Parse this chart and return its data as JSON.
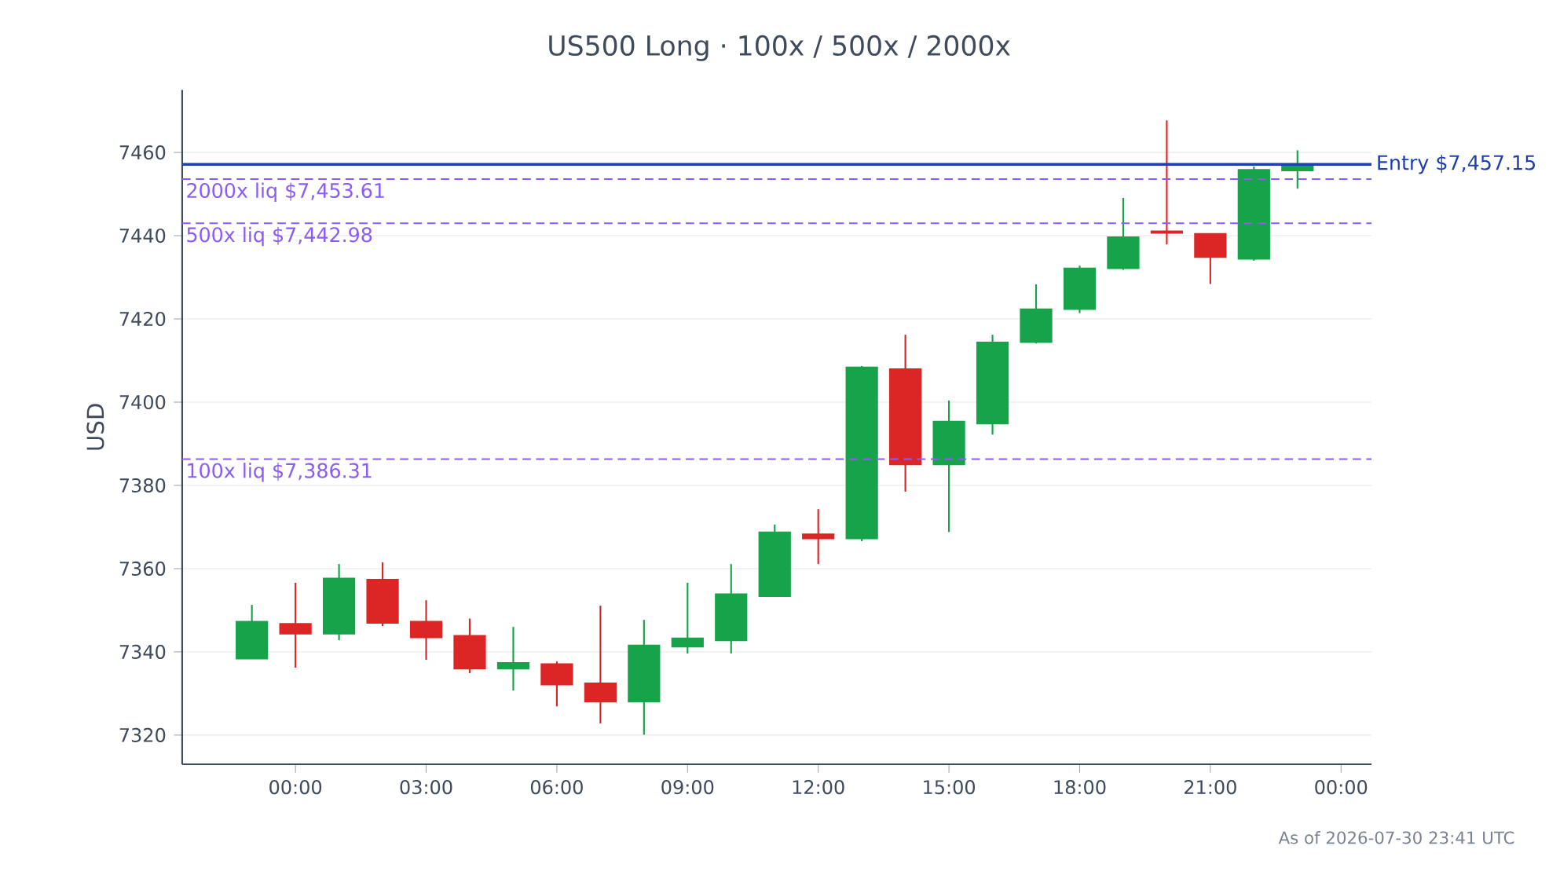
{
  "chart_data": {
    "type": "candlestick",
    "title": "US500 Long · 100x / 500x / 2000x",
    "ylabel": "USD",
    "x": [
      -1,
      0,
      1,
      2,
      3,
      4,
      5,
      6,
      7,
      8,
      9,
      10,
      11,
      12,
      13,
      14,
      15,
      16,
      17,
      18,
      19,
      20,
      21,
      22,
      23
    ],
    "ohlc": [
      [
        7338.4,
        7351.3,
        7338.4,
        7347.2
      ],
      [
        7346.7,
        7356.6,
        7336.2,
        7344.4
      ],
      [
        7344.4,
        7361.1,
        7342.8,
        7357.6
      ],
      [
        7357.3,
        7361.5,
        7346.2,
        7347.0
      ],
      [
        7347.2,
        7352.4,
        7338.1,
        7343.5
      ],
      [
        7343.8,
        7348.0,
        7334.9,
        7336.0
      ],
      [
        7336.0,
        7346.0,
        7330.7,
        7337.3
      ],
      [
        7337.0,
        7337.7,
        7326.9,
        7332.2
      ],
      [
        7332.4,
        7351.1,
        7322.8,
        7328.1
      ],
      [
        7328.1,
        7347.7,
        7320.1,
        7341.5
      ],
      [
        7341.3,
        7356.6,
        7339.6,
        7343.2
      ],
      [
        7342.8,
        7361.1,
        7339.6,
        7353.8
      ],
      [
        7353.4,
        7370.6,
        7353.4,
        7368.7
      ],
      [
        7368.2,
        7374.3,
        7361.1,
        7367.3
      ],
      [
        7367.3,
        7408.7,
        7366.6,
        7408.3
      ],
      [
        7407.9,
        7416.2,
        7378.5,
        7385.1
      ],
      [
        7385.1,
        7400.4,
        7368.8,
        7395.3
      ],
      [
        7394.9,
        7416.2,
        7392.2,
        7414.3
      ],
      [
        7414.5,
        7428.3,
        7414.1,
        7422.3
      ],
      [
        7422.4,
        7432.8,
        7421.4,
        7432.1
      ],
      [
        7432.2,
        7449.1,
        7431.8,
        7439.6
      ],
      [
        7441.0,
        7467.7,
        7437.9,
        7440.7
      ],
      [
        7440.4,
        7440.4,
        7428.4,
        7434.9
      ],
      [
        7434.5,
        7456.6,
        7434.0,
        7455.8
      ],
      [
        7455.7,
        7460.5,
        7451.3,
        7456.9
      ]
    ],
    "colors": [
      "#16a34a",
      "#dc2626",
      "#16a34a",
      "#dc2626",
      "#dc2626",
      "#dc2626",
      "#16a34a",
      "#dc2626",
      "#dc2626",
      "#16a34a",
      "#16a34a",
      "#16a34a",
      "#16a34a",
      "#dc2626",
      "#16a34a",
      "#dc2626",
      "#16a34a",
      "#16a34a",
      "#16a34a",
      "#16a34a",
      "#16a34a",
      "#dc2626",
      "#dc2626",
      "#16a34a",
      "#16a34a"
    ],
    "xlim": [
      -2.6,
      24.7
    ],
    "xticks": [
      {
        "value": 0,
        "label": "00:00"
      },
      {
        "value": 3,
        "label": "03:00"
      },
      {
        "value": 6,
        "label": "06:00"
      },
      {
        "value": 9,
        "label": "09:00"
      },
      {
        "value": 12,
        "label": "12:00"
      },
      {
        "value": 15,
        "label": "15:00"
      },
      {
        "value": 18,
        "label": "18:00"
      },
      {
        "value": 21,
        "label": "21:00"
      },
      {
        "value": 24,
        "label": "00:00"
      }
    ],
    "ylim": [
      7313,
      7475
    ],
    "yticks": [
      7320,
      7340,
      7360,
      7380,
      7400,
      7420,
      7440,
      7460
    ],
    "grid": "y",
    "ref_lines": [
      {
        "axis": "y",
        "value": 7457.15,
        "label": "Entry $7,457.15",
        "color": "#1e40af",
        "line_style": "solid"
      },
      {
        "axis": "y",
        "value": 7453.61,
        "label": "2000x liq $7,453.61",
        "color": "#8b5cf6",
        "line_style": "dashed"
      },
      {
        "axis": "y",
        "value": 7442.98,
        "label": "500x liq $7,442.98",
        "color": "#8b5cf6",
        "line_style": "dashed"
      },
      {
        "axis": "y",
        "value": 7386.31,
        "label": "100x liq $7,386.31",
        "color": "#8b5cf6",
        "line_style": "dashed"
      }
    ],
    "annotations": [
      "As of 2026-07-30 23:41 UTC"
    ]
  }
}
